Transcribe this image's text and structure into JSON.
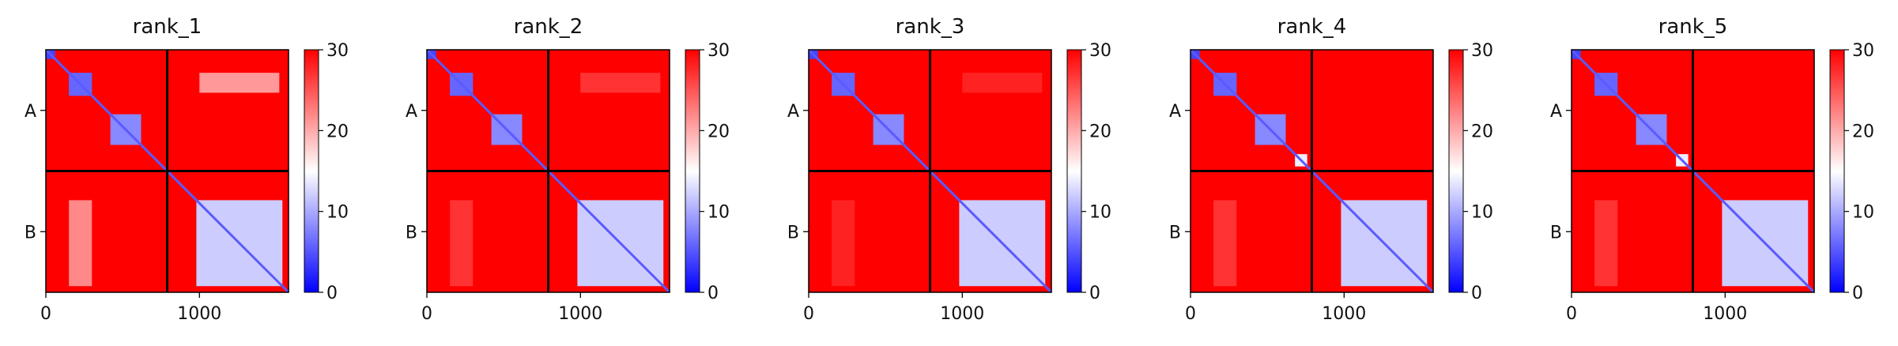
{
  "figure": {
    "panels": [
      "rank_1",
      "rank_2",
      "rank_3",
      "rank_4",
      "rank_5"
    ]
  },
  "colors": {
    "low": "#0000ff",
    "mid": "#ffffff",
    "high": "#ff0000",
    "divider": "#000000"
  },
  "chart_data": [
    {
      "type": "heatmap",
      "title": "rank_1",
      "xlabel": "",
      "ylabel": "",
      "colormap": "bwr",
      "colorbar": {
        "range": [
          0,
          30
        ],
        "ticks": [
          "0",
          "10",
          "20",
          "30"
        ]
      },
      "x_ticks": [
        "0",
        "1000"
      ],
      "y_ticks": [
        "A",
        "B"
      ],
      "xlim": [
        0,
        1580
      ],
      "chain_boundary": 790,
      "blocks": [
        {
          "x": [
            0,
            60
          ],
          "y": [
            0,
            60
          ],
          "value": 4
        },
        {
          "x": [
            150,
            300
          ],
          "y": [
            150,
            300
          ],
          "value": 6
        },
        {
          "x": [
            420,
            620
          ],
          "y": [
            420,
            620
          ],
          "value": 8
        },
        {
          "x": [
            980,
            1540
          ],
          "y": [
            980,
            1540
          ],
          "value": 12
        },
        {
          "x": [
            1000,
            1520
          ],
          "y": [
            150,
            280
          ],
          "value": 21
        },
        {
          "x": [
            150,
            300
          ],
          "y": [
            980,
            1540
          ],
          "value": 22
        }
      ]
    },
    {
      "type": "heatmap",
      "title": "rank_2",
      "xlabel": "",
      "ylabel": "",
      "colormap": "bwr",
      "colorbar": {
        "range": [
          0,
          30
        ],
        "ticks": [
          "0",
          "10",
          "20",
          "30"
        ]
      },
      "x_ticks": [
        "0",
        "1000"
      ],
      "y_ticks": [
        "A",
        "B"
      ],
      "xlim": [
        0,
        1580
      ],
      "chain_boundary": 790,
      "blocks": [
        {
          "x": [
            0,
            60
          ],
          "y": [
            0,
            60
          ],
          "value": 4
        },
        {
          "x": [
            150,
            300
          ],
          "y": [
            150,
            300
          ],
          "value": 6
        },
        {
          "x": [
            420,
            620
          ],
          "y": [
            420,
            620
          ],
          "value": 8
        },
        {
          "x": [
            980,
            1540
          ],
          "y": [
            980,
            1540
          ],
          "value": 12
        },
        {
          "x": [
            1000,
            1520
          ],
          "y": [
            150,
            280
          ],
          "value": 27
        },
        {
          "x": [
            150,
            300
          ],
          "y": [
            980,
            1540
          ],
          "value": 27
        }
      ]
    },
    {
      "type": "heatmap",
      "title": "rank_3",
      "xlabel": "",
      "ylabel": "",
      "colormap": "bwr",
      "colorbar": {
        "range": [
          0,
          30
        ],
        "ticks": [
          "0",
          "10",
          "20",
          "30"
        ]
      },
      "x_ticks": [
        "0",
        "1000"
      ],
      "y_ticks": [
        "A",
        "B"
      ],
      "xlim": [
        0,
        1580
      ],
      "chain_boundary": 790,
      "blocks": [
        {
          "x": [
            0,
            60
          ],
          "y": [
            0,
            60
          ],
          "value": 4
        },
        {
          "x": [
            150,
            300
          ],
          "y": [
            150,
            300
          ],
          "value": 6
        },
        {
          "x": [
            420,
            620
          ],
          "y": [
            420,
            620
          ],
          "value": 8
        },
        {
          "x": [
            980,
            1540
          ],
          "y": [
            980,
            1540
          ],
          "value": 12
        },
        {
          "x": [
            1000,
            1520
          ],
          "y": [
            150,
            280
          ],
          "value": 28
        },
        {
          "x": [
            150,
            300
          ],
          "y": [
            980,
            1540
          ],
          "value": 28
        }
      ]
    },
    {
      "type": "heatmap",
      "title": "rank_4",
      "xlabel": "",
      "ylabel": "",
      "colormap": "bwr",
      "colorbar": {
        "range": [
          0,
          30
        ],
        "ticks": [
          "0",
          "10",
          "20",
          "30"
        ]
      },
      "x_ticks": [
        "0",
        "1000"
      ],
      "y_ticks": [
        "A",
        "B"
      ],
      "xlim": [
        0,
        1580
      ],
      "chain_boundary": 790,
      "blocks": [
        {
          "x": [
            0,
            60
          ],
          "y": [
            0,
            60
          ],
          "value": 4
        },
        {
          "x": [
            150,
            300
          ],
          "y": [
            150,
            300
          ],
          "value": 6
        },
        {
          "x": [
            420,
            620
          ],
          "y": [
            420,
            620
          ],
          "value": 8
        },
        {
          "x": [
            680,
            760
          ],
          "y": [
            680,
            760
          ],
          "value": 14
        },
        {
          "x": [
            980,
            1540
          ],
          "y": [
            980,
            1540
          ],
          "value": 12
        },
        {
          "x": [
            150,
            300
          ],
          "y": [
            980,
            1540
          ],
          "value": 27
        }
      ]
    },
    {
      "type": "heatmap",
      "title": "rank_5",
      "xlabel": "",
      "ylabel": "",
      "colormap": "bwr",
      "colorbar": {
        "range": [
          0,
          30
        ],
        "ticks": [
          "0",
          "10",
          "20",
          "30"
        ]
      },
      "x_ticks": [
        "0",
        "1000"
      ],
      "y_ticks": [
        "A",
        "B"
      ],
      "xlim": [
        0,
        1580
      ],
      "chain_boundary": 790,
      "blocks": [
        {
          "x": [
            0,
            60
          ],
          "y": [
            0,
            60
          ],
          "value": 4
        },
        {
          "x": [
            150,
            300
          ],
          "y": [
            150,
            300
          ],
          "value": 6
        },
        {
          "x": [
            420,
            620
          ],
          "y": [
            420,
            620
          ],
          "value": 8
        },
        {
          "x": [
            680,
            760
          ],
          "y": [
            680,
            760
          ],
          "value": 14
        },
        {
          "x": [
            980,
            1540
          ],
          "y": [
            980,
            1540
          ],
          "value": 12
        },
        {
          "x": [
            150,
            300
          ],
          "y": [
            980,
            1540
          ],
          "value": 27
        }
      ]
    }
  ]
}
